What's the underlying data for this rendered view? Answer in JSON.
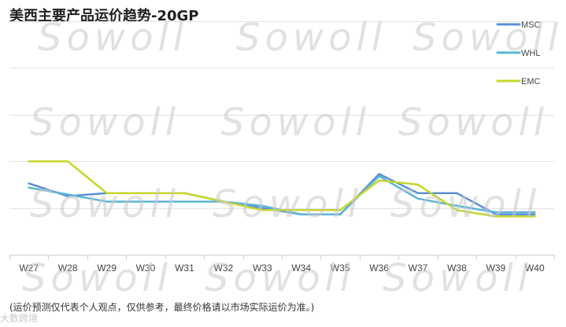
{
  "title": "美西主要产品运价趋势-20GP",
  "footnote": "(运价预测仅代表个人观点，仅供参考，最终价格请以市场实际运价为准。)",
  "watermark": {
    "text": "Sowoll",
    "corner_text": "大数跨境"
  },
  "chart_data": {
    "type": "line",
    "title": "美西主要产品运价趋势-20GP",
    "categories": [
      "W27",
      "W28",
      "W29",
      "W30",
      "W31",
      "W32",
      "W33",
      "W34",
      "W35",
      "W36",
      "W37",
      "W38",
      "W39",
      "W40"
    ],
    "ylim": [
      0,
      6
    ],
    "grid": true,
    "legend_position": "top-right",
    "series": [
      {
        "name": "MSC",
        "color": "#5b8fd4",
        "values": [
          1.68,
          1.38,
          1.45,
          1.45,
          1.45,
          1.25,
          1.1,
          0.95,
          0.95,
          1.9,
          1.45,
          1.45,
          0.95,
          0.95
        ]
      },
      {
        "name": "WHL",
        "color": "#5ab4d8",
        "values": [
          1.58,
          1.42,
          1.25,
          1.25,
          1.25,
          1.25,
          1.15,
          0.95,
          0.95,
          1.85,
          1.32,
          1.15,
          1.0,
          1.0
        ]
      },
      {
        "name": "EMC",
        "color": "#c5d62a",
        "values": [
          2.2,
          2.2,
          1.45,
          1.45,
          1.45,
          1.25,
          1.05,
          1.05,
          1.05,
          1.75,
          1.65,
          1.05,
          0.9,
          0.9
        ]
      }
    ]
  }
}
